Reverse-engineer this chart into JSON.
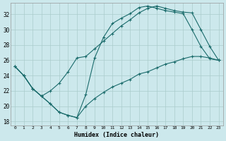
{
  "xlabel": "Humidex (Indice chaleur)",
  "bg_color": "#cce8ec",
  "grid_color": "#aacccc",
  "line_color": "#1a6b6b",
  "xlim": [
    -0.5,
    23.5
  ],
  "ylim": [
    17.5,
    33.5
  ],
  "xticks": [
    0,
    1,
    2,
    3,
    4,
    5,
    6,
    7,
    8,
    9,
    10,
    11,
    12,
    13,
    14,
    15,
    16,
    17,
    18,
    19,
    20,
    21,
    22,
    23
  ],
  "yticks": [
    18,
    20,
    22,
    24,
    26,
    28,
    30,
    32
  ],
  "line1_x": [
    0,
    1,
    2,
    3,
    4,
    5,
    6,
    7,
    8,
    9,
    10,
    11,
    12,
    13,
    14,
    15,
    16,
    17,
    18,
    19,
    20,
    21,
    22,
    23
  ],
  "line1_y": [
    25.2,
    24.0,
    22.3,
    21.3,
    20.3,
    19.2,
    18.8,
    18.5,
    21.5,
    26.3,
    29.0,
    30.8,
    31.5,
    32.1,
    32.9,
    33.1,
    32.8,
    32.5,
    32.3,
    32.1,
    30.0,
    27.8,
    26.2,
    26.0
  ],
  "line2_x": [
    0,
    1,
    2,
    3,
    4,
    5,
    6,
    7,
    8,
    9,
    10,
    11,
    12,
    13,
    14,
    15,
    16,
    17,
    18,
    19,
    20,
    21,
    22,
    23
  ],
  "line2_y": [
    25.2,
    24.0,
    22.3,
    21.3,
    22.0,
    23.0,
    24.5,
    26.3,
    26.5,
    27.5,
    28.5,
    29.5,
    30.5,
    31.3,
    32.2,
    32.8,
    33.1,
    32.8,
    32.5,
    32.3,
    32.2,
    30.0,
    27.8,
    26.0
  ],
  "line3_x": [
    0,
    1,
    2,
    3,
    4,
    5,
    6,
    7,
    8,
    9,
    10,
    11,
    12,
    13,
    14,
    15,
    16,
    17,
    18,
    19,
    20,
    21,
    22,
    23
  ],
  "line3_y": [
    25.2,
    24.0,
    22.3,
    21.3,
    20.3,
    19.2,
    18.8,
    18.5,
    20.0,
    21.0,
    21.8,
    22.5,
    23.0,
    23.5,
    24.2,
    24.5,
    25.0,
    25.5,
    25.8,
    26.2,
    26.5,
    26.5,
    26.3,
    26.0
  ]
}
